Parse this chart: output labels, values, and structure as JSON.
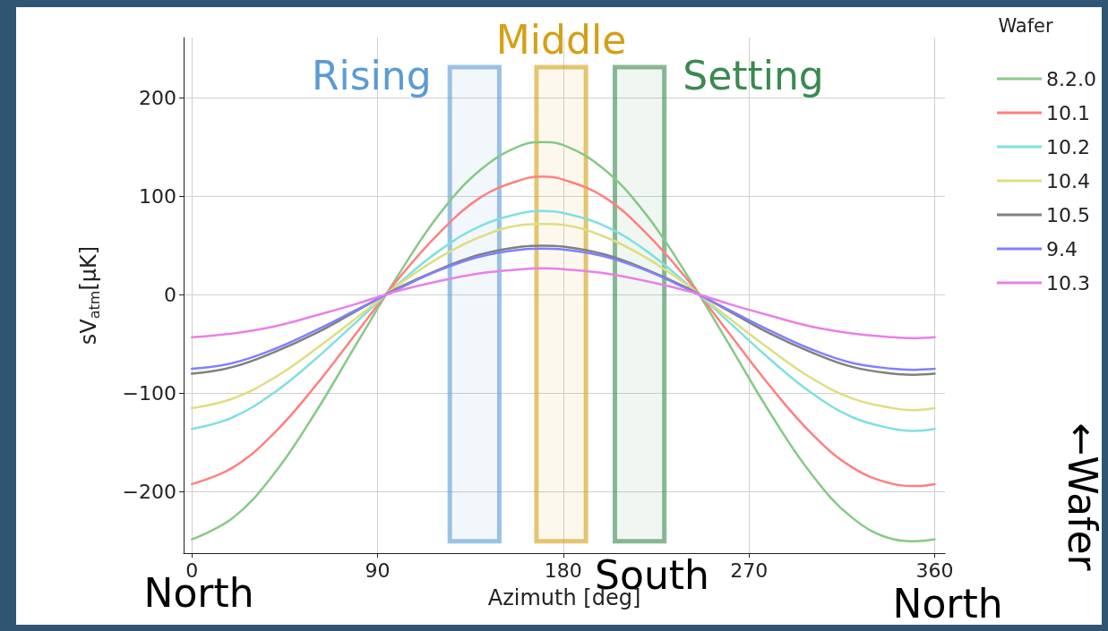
{
  "chart_data": {
    "type": "line",
    "xlabel": "Azimuth [deg]",
    "ylabel": "sV$_{atm}$[μK]",
    "legend_title": "Wafer",
    "legend": "top right",
    "grid": true,
    "marker": "none",
    "line_style": "solid",
    "xlim": [
      -4,
      365
    ],
    "xticks": [
      0,
      90,
      180,
      270,
      360
    ],
    "ylim": [
      -262,
      261
    ],
    "yticks": [
      -200,
      -100,
      0,
      100,
      200
    ],
    "x": [
      0,
      20,
      40,
      60,
      80,
      100,
      120,
      140,
      160,
      170,
      180,
      200,
      220,
      240,
      260,
      280,
      300,
      320,
      340,
      350,
      360
    ],
    "series": [
      {
        "name": "8.2.0",
        "color": "#86c986",
        "values": [
          -248,
          -226,
          -181,
          -119,
          -49,
          20,
          82,
          127,
          152,
          155,
          152,
          127,
          82,
          20,
          -49,
          -119,
          -181,
          -226,
          -248,
          -250,
          -248
        ]
      },
      {
        "name": "10.1",
        "color": "#ff8080",
        "values": [
          -192,
          -175,
          -140,
          -92,
          -38,
          16,
          63,
          99,
          117,
          120,
          117,
          99,
          63,
          16,
          -38,
          -92,
          -140,
          -175,
          -192,
          -194,
          -192
        ]
      },
      {
        "name": "10.2",
        "color": "#80e0e0",
        "values": [
          -136,
          -124,
          -99,
          -65,
          -27,
          11,
          45,
          70,
          83,
          85,
          83,
          70,
          45,
          11,
          -27,
          -65,
          -99,
          -124,
          -136,
          -138,
          -136
        ]
      },
      {
        "name": "10.4",
        "color": "#dede80",
        "values": [
          -115,
          -105,
          -84,
          -55,
          -23,
          10,
          38,
          59,
          71,
          72,
          71,
          59,
          38,
          10,
          -23,
          -55,
          -84,
          -105,
          -115,
          -117,
          -115
        ]
      },
      {
        "name": "10.5",
        "color": "#808080",
        "values": [
          -80,
          -73,
          -58,
          -39,
          -16,
          7,
          26,
          41,
          49,
          50,
          49,
          41,
          26,
          7,
          -16,
          -39,
          -58,
          -73,
          -80,
          -81,
          -80
        ]
      },
      {
        "name": "9.4",
        "color": "#8080ff",
        "values": [
          -75,
          -69,
          -55,
          -36,
          -15,
          6,
          25,
          39,
          46,
          47,
          46,
          39,
          25,
          6,
          -15,
          -36,
          -55,
          -69,
          -75,
          -76,
          -75
        ]
      },
      {
        "name": "10.3",
        "color": "#e880e8",
        "values": [
          -43,
          -39,
          -32,
          -21,
          -9,
          4,
          14,
          22,
          26,
          27,
          26,
          22,
          14,
          4,
          -9,
          -21,
          -32,
          -39,
          -43,
          -44,
          -43
        ]
      }
    ],
    "bands": [
      {
        "axis": "x",
        "from": 125,
        "to": 149,
        "label": "Rising",
        "color": "#5a9bd5"
      },
      {
        "axis": "x",
        "from": 167,
        "to": 191,
        "label": "Middle",
        "color": "#d4a017"
      },
      {
        "axis": "x",
        "from": 205,
        "to": 229,
        "label": "Setting",
        "color": "#3a8a50"
      }
    ],
    "annotations": [
      "North",
      "South",
      "North",
      "←Wafer"
    ]
  }
}
